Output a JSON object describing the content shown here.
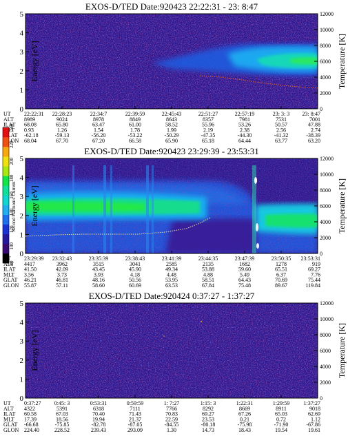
{
  "colors": {
    "background": "#2c1b92",
    "colorbar": [
      "#000000",
      "#3a0a74",
      "#26189c",
      "#1934d2",
      "#1e70ec",
      "#20b0f2",
      "#10d8d0",
      "#10e09a",
      "#10e648",
      "#a8e810",
      "#f0e210",
      "#f8a810",
      "#f05010",
      "#e21010"
    ]
  },
  "colorbar": {
    "label": "Second Harmonic Current",
    "ticks": [
      "80",
      "100",
      "120",
      "140",
      "160",
      "180",
      "200",
      "220",
      "240"
    ]
  },
  "row_labels": [
    "UT",
    "ALT",
    "ILAT",
    "MLT",
    "GLAT",
    "GLON"
  ],
  "chart_data": [
    {
      "type": "heatmap",
      "title": "EXOS-D/TED   Date:920423  22:22:31 - 23: 8:47",
      "xlabel": "",
      "ylabel": "Energy [eV]",
      "y2label": "Temperature [K]",
      "ylim": [
        0,
        5
      ],
      "y2lim": [
        0,
        12000
      ],
      "yticks": [
        "0",
        "1",
        "2",
        "3",
        "4",
        "5"
      ],
      "y2ticks": [
        "0",
        "2000",
        "4000",
        "6000",
        "8000",
        "10000",
        "12000"
      ],
      "grid": false,
      "ephemeris": {
        "UT": [
          "22:22:31",
          "22:28:23",
          "22:34:7",
          "22:39:59",
          "22:45:43",
          "22:51:27",
          "22:57:19",
          "23: 3: 3",
          "23: 8:47"
        ],
        "ALT": [
          "8989",
          "9024",
          "8978",
          "8849",
          "8643",
          "8357",
          "7981",
          "7531",
          "7001"
        ],
        "ILAT": [
          "68.08",
          "65.80",
          "63.47",
          "61.00",
          "58.52",
          "55.96",
          "53.26",
          "50.57",
          "47.88"
        ],
        "MLT": [
          "0.93",
          "1.26",
          "1.54",
          "1.78",
          "1.99",
          "2.19",
          "2.38",
          "2.56",
          "2.74"
        ],
        "GLAT": [
          "-62.18",
          "-59.13",
          "-56.20",
          "-53.22",
          "-50.29",
          "-47.35",
          "-44.30",
          "-41.32",
          "-38.39"
        ],
        "GLON": [
          "68.04",
          "67.70",
          "67.20",
          "66.58",
          "65.90",
          "65.18",
          "64.44",
          "63.77",
          "63.20"
        ]
      }
    },
    {
      "type": "heatmap",
      "title": "EXOS-D/TED   Date:920423  23:29:39 - 23:53:31",
      "xlabel": "",
      "ylabel": "Energy [eV]",
      "y2label": "Temperature [K]",
      "ylim": [
        0,
        5
      ],
      "y2lim": [
        0,
        12000
      ],
      "yticks": [
        "0",
        "1",
        "2",
        "3",
        "4",
        "5"
      ],
      "y2ticks": [
        "0",
        "2000",
        "4000",
        "6000",
        "8000",
        "10000",
        "12000"
      ],
      "grid": false,
      "ephemeris": {
        "UT": [
          "23:29:39",
          "23:32:43",
          "23:35:39",
          "23:38:43",
          "23:41:39",
          "23:44:35",
          "23:47:39",
          "23:50:35",
          "23:53:31"
        ],
        "ALT": [
          "4417",
          "3962",
          "3515",
          "3041",
          "2585",
          "2135",
          "1682",
          "1278",
          "919"
        ],
        "ILAT": [
          "41.50",
          "42.09",
          "43.45",
          "45.90",
          "49.34",
          "53.88",
          "59.60",
          "65.51",
          "69.27"
        ],
        "MLT": [
          "3.56",
          "3.73",
          "3.93",
          "4.18",
          "4.48",
          "4.88",
          "5.49",
          "6.37",
          "7.76"
        ],
        "GLAT": [
          "46.21",
          "46.81",
          "48.16",
          "50.56",
          "53.95",
          "58.51",
          "64.43",
          "70.69",
          "75.44"
        ],
        "GLON": [
          "55.87",
          "57.11",
          "58.60",
          "60.69",
          "63.53",
          "67.84",
          "75.48",
          "89.67",
          "119.84"
        ]
      }
    },
    {
      "type": "heatmap",
      "title": "EXOS-D/TED   Date:920424  0:37:27 - 1:37:27",
      "xlabel": "",
      "ylabel": "Energy [eV]",
      "y2label": "Temperature [K]",
      "ylim": [
        0,
        5
      ],
      "y2lim": [
        0,
        12000
      ],
      "yticks": [
        "0",
        "1",
        "2",
        "3",
        "4",
        "5"
      ],
      "y2ticks": [
        "0",
        "2000",
        "4000",
        "6000",
        "8000",
        "10000",
        "12000"
      ],
      "grid": false,
      "ephemeris": {
        "UT": [
          "0:37:27",
          "0:45: 3",
          "0:53:31",
          "0:59:59",
          "1: 7:27",
          "1:15: 3",
          "1:22:31",
          "1:29:59",
          "1:37:27"
        ],
        "ALT": [
          "4322",
          "5391",
          "6318",
          "7111",
          "7766",
          "8292",
          "8669",
          "8911",
          "9018"
        ],
        "ILAT": [
          "60.58",
          "67.03",
          "70.40",
          "71.43",
          "70.83",
          "69.27",
          "67.26",
          "65.03",
          "62.69"
        ],
        "MLT": [
          "17.39",
          "18.56",
          "19.94",
          "21.37",
          "22.59",
          "23.53",
          "0.21",
          "0.72",
          "1.12"
        ],
        "GLAT": [
          "-66.68",
          "-75.85",
          "-82.78",
          "-87.05",
          "-84.55",
          "-80.18",
          "-75.98",
          "-71.90",
          "-67.86"
        ],
        "GLON": [
          "224.40",
          "228.52",
          "239.43",
          "293.09",
          "1.30",
          "14.73",
          "18.43",
          "19.54",
          "19.61"
        ]
      }
    }
  ]
}
